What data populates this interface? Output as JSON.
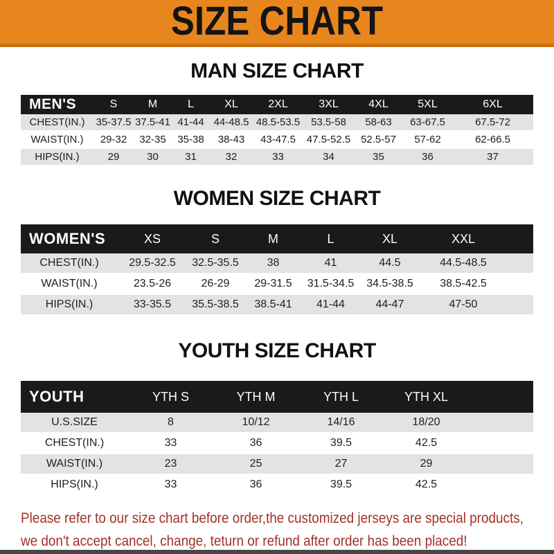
{
  "banner": {
    "title": "SIZE CHART"
  },
  "sections": [
    {
      "title": "MAN SIZE CHART",
      "group_label": "MEN'S",
      "columns": [
        "S",
        "M",
        "L",
        "XL",
        "2XL",
        "3XL",
        "4XL",
        "5XL",
        "6XL"
      ],
      "rows": [
        {
          "label": "CHEST(IN.)",
          "values": [
            "35-37.5",
            "37.5-41",
            "41-44",
            "44-48.5",
            "48.5-53.5",
            "53.5-58",
            "58-63",
            "63-67.5",
            "67.5-72"
          ]
        },
        {
          "label": "WAIST(IN.)",
          "values": [
            "29-32",
            "32-35",
            "35-38",
            "38-43",
            "43-47.5",
            "47.5-52.5",
            "52.5-57",
            "57-62",
            "62-66.5"
          ]
        },
        {
          "label": "HIPS(IN.)",
          "values": [
            "29",
            "30",
            "31",
            "32",
            "33",
            "34",
            "35",
            "36",
            "37"
          ]
        }
      ]
    },
    {
      "title": "WOMEN SIZE CHART",
      "group_label": "WOMEN'S",
      "columns": [
        "XS",
        "S",
        "M",
        "L",
        "XL",
        "XXL"
      ],
      "rows": [
        {
          "label": "CHEST(IN.)",
          "values": [
            "29.5-32.5",
            "32.5-35.5",
            "38",
            "41",
            "44.5",
            "44.5-48.5"
          ]
        },
        {
          "label": "WAIST(IN.)",
          "values": [
            "23.5-26",
            "26-29",
            "29-31.5",
            "31.5-34.5",
            "34.5-38.5",
            "38.5-42.5"
          ]
        },
        {
          "label": "HIPS(IN.)",
          "values": [
            "33-35.5",
            "35.5-38.5",
            "38.5-41",
            "41-44",
            "44-47",
            "47-50"
          ]
        }
      ]
    },
    {
      "title": "YOUTH SIZE CHART",
      "group_label": "YOUTH",
      "columns": [
        "YTH S",
        "YTH M",
        "YTH L",
        "YTH XL"
      ],
      "rows": [
        {
          "label": "U.S.SIZE",
          "values": [
            "8",
            "10/12",
            "14/16",
            "18/20"
          ]
        },
        {
          "label": "CHEST(IN.)",
          "values": [
            "33",
            "36",
            "39.5",
            "42.5"
          ]
        },
        {
          "label": "WAIST(IN.)",
          "values": [
            "23",
            "25",
            "27",
            "29"
          ]
        },
        {
          "label": "HIPS(IN.)",
          "values": [
            "33",
            "36",
            "39.5",
            "42.5"
          ]
        }
      ]
    }
  ],
  "footer": {
    "line1": "Please refer to our size chart before order,the customized jerseys are special products,",
    "line2": "we don't accept cancel, change, teturn or refund after order has been placed!"
  },
  "colors": {
    "banner_bg": "#E8861E",
    "banner_accent": "#C9700F",
    "header_bar_bg": "#1A1A1A",
    "row_stripe": "#E4E3E1",
    "footer_text": "#A33129"
  }
}
